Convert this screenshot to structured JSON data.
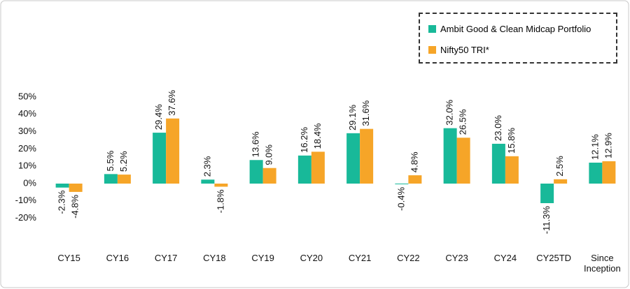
{
  "chart_data": {
    "type": "bar",
    "categories": [
      "CY15",
      "CY16",
      "CY17",
      "CY18",
      "CY19",
      "CY20",
      "CY21",
      "CY22",
      "CY23",
      "CY24",
      "CY25TD",
      "Since Inception"
    ],
    "series": [
      {
        "name": "Ambit Good & Clean Midcap Portfolio",
        "color": "#18b999",
        "values": [
          -2.3,
          5.5,
          29.4,
          2.3,
          13.6,
          16.2,
          29.1,
          -0.4,
          32.0,
          23.0,
          -11.3,
          12.1
        ],
        "value_labels": [
          "-2.3%",
          "5.5%",
          "29.4%",
          "2.3%",
          "13.6%",
          "16.2%",
          "29.1%",
          "-0.4%",
          "32.0%",
          "23.0%",
          "-11.3%",
          "12.1%"
        ]
      },
      {
        "name": "Nifty50 TRI*",
        "color": "#f6a528",
        "values": [
          -4.8,
          5.2,
          37.6,
          -1.8,
          9.0,
          18.4,
          31.6,
          4.8,
          26.5,
          15.8,
          2.5,
          12.9
        ],
        "value_labels": [
          "-4.8%",
          "5.2%",
          "37.6%",
          "-1.8%",
          "9.0%",
          "18.4%",
          "31.6%",
          "4.8%",
          "26.5%",
          "15.8%",
          "2.5%",
          "12.9%"
        ]
      }
    ],
    "ylim": [
      -20,
      50
    ],
    "yticks": [
      {
        "value": -20,
        "label": "-20%"
      },
      {
        "value": -10,
        "label": "-10%"
      },
      {
        "value": 0,
        "label": "0%"
      },
      {
        "value": 10,
        "label": "10%"
      },
      {
        "value": 20,
        "label": "20%"
      },
      {
        "value": 30,
        "label": "30%"
      },
      {
        "value": 40,
        "label": "40%"
      },
      {
        "value": 50,
        "label": "50%"
      }
    ],
    "grid": false,
    "legend": "top-right"
  }
}
